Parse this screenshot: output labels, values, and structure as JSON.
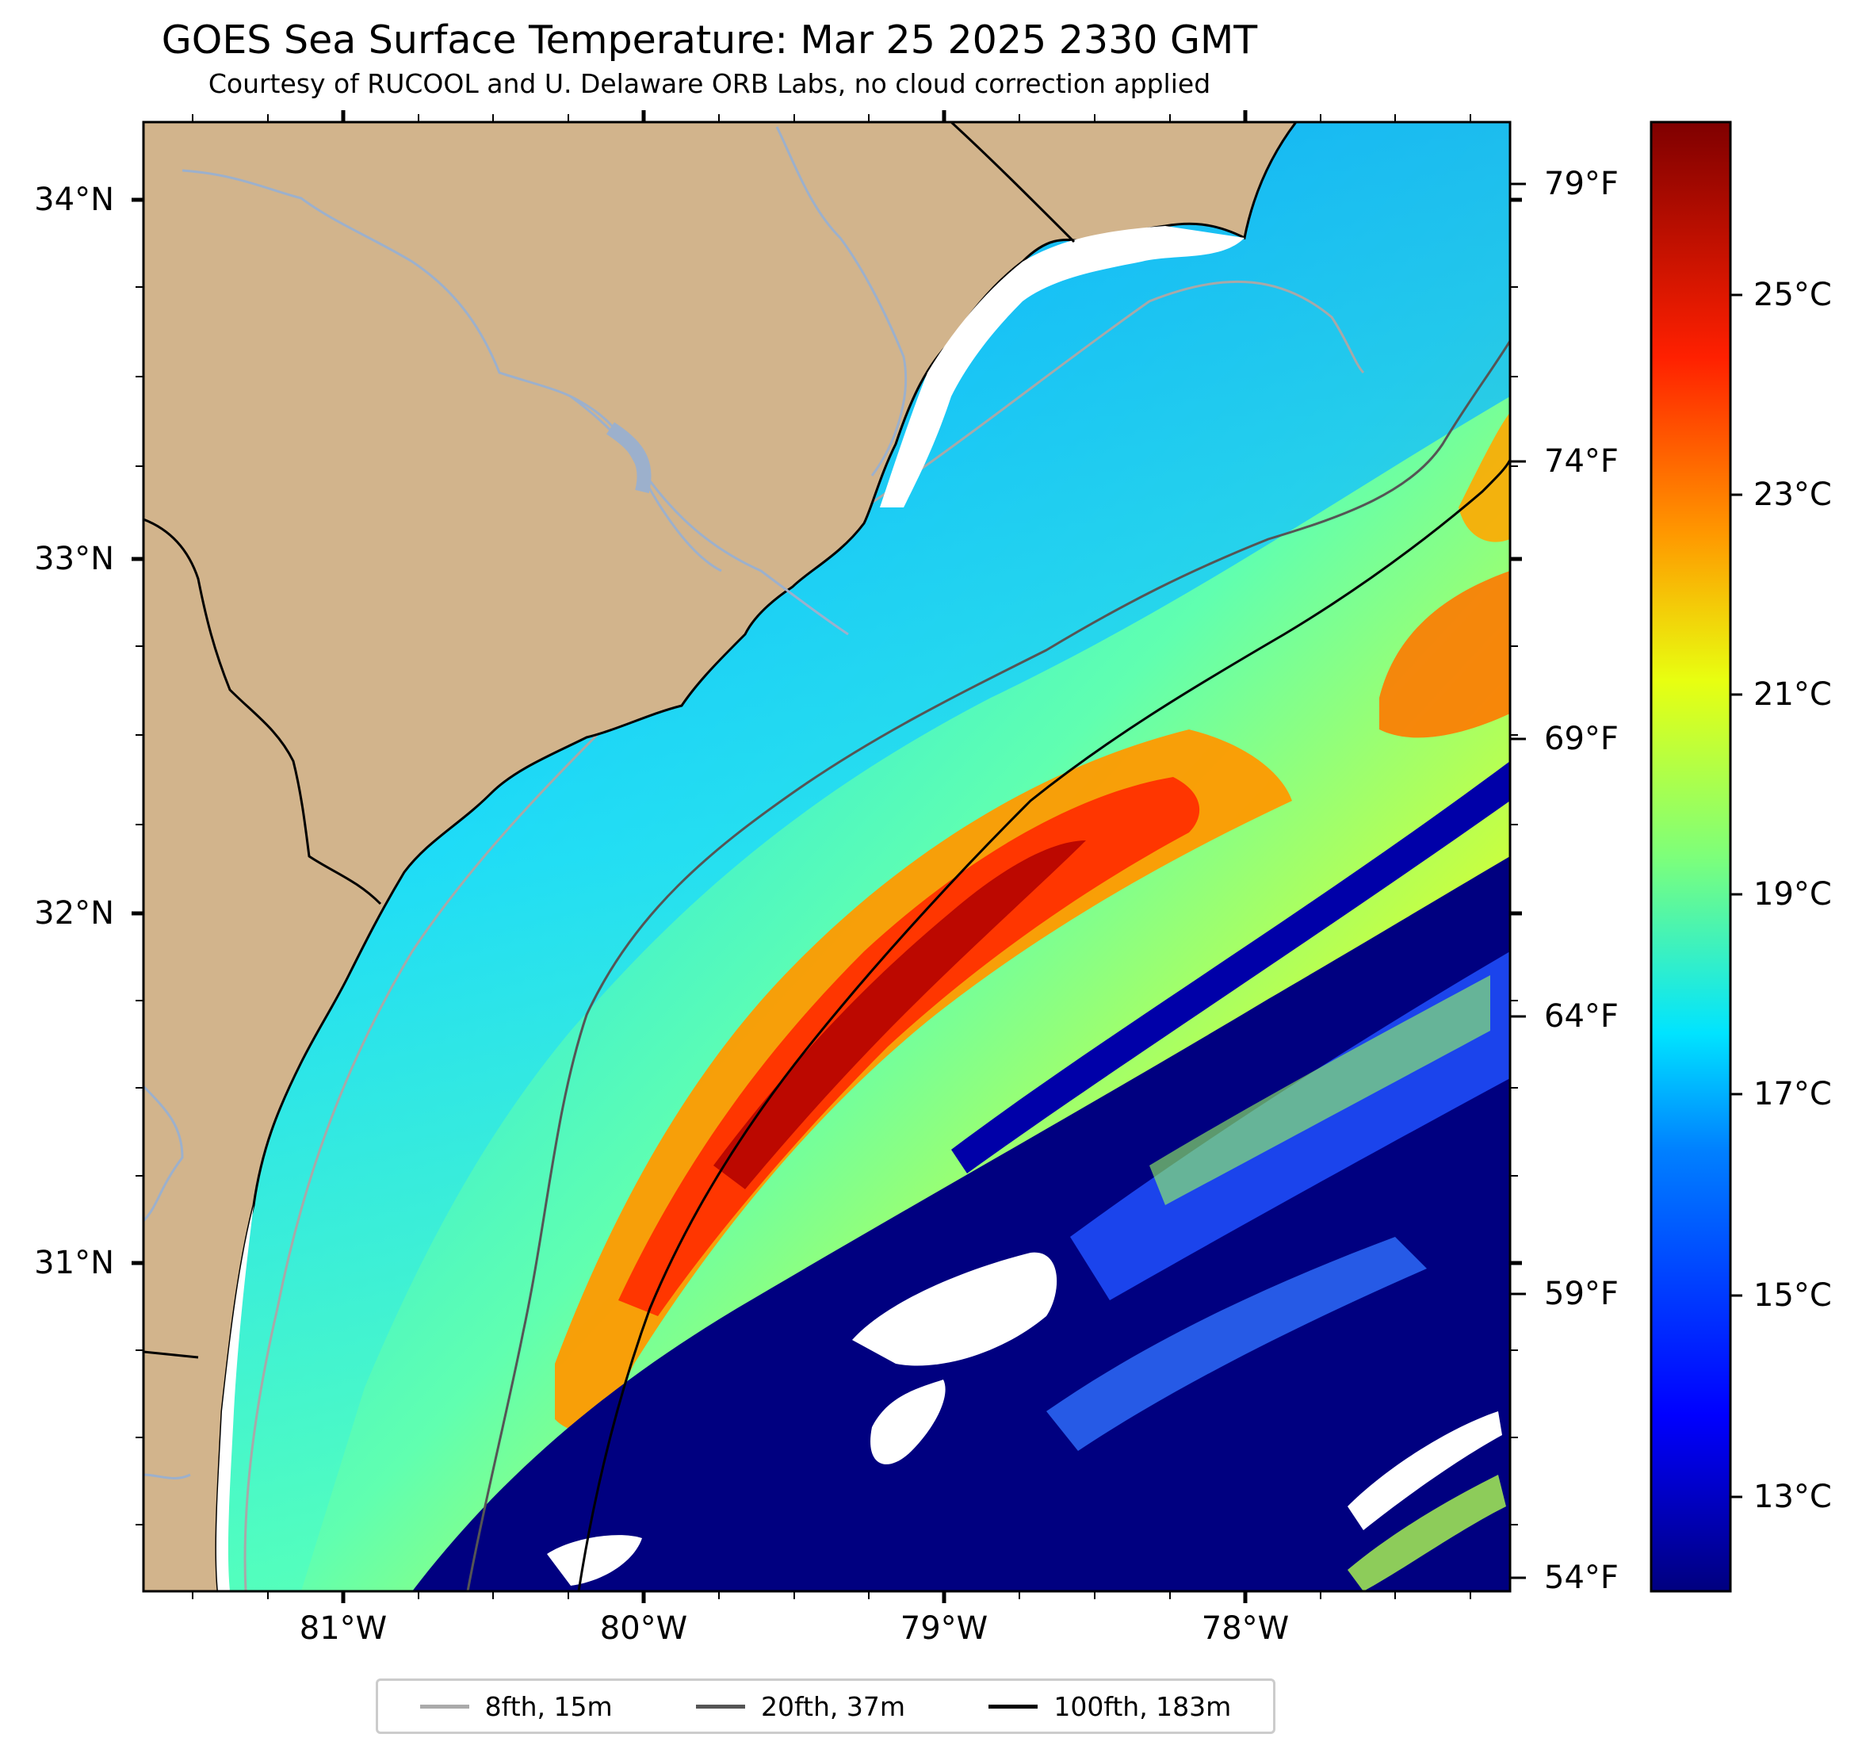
{
  "title": "GOES Sea Surface Temperature: Mar 25 2025 2330 GMT",
  "subtitle": "Courtesy of RUCOOL and U. Delaware ORB Labs, no cloud correction applied",
  "lat_labels": [
    "34°N",
    "33°N",
    "32°N",
    "31°N"
  ],
  "lon_labels": [
    "81°W",
    "80°W",
    "79°W",
    "78°W"
  ],
  "temp_f_labels": [
    "79°F",
    "74°F",
    "69°F",
    "64°F",
    "59°F",
    "54°F"
  ],
  "colorbar": {
    "labels": [
      "25°C",
      "23°C",
      "21°C",
      "19°C",
      "17°C",
      "15°C",
      "13°C"
    ],
    "colors": [
      "#7f0000",
      "#ff0000",
      "#ff8000",
      "#ffff00",
      "#80ff80",
      "#00ffff",
      "#0080ff",
      "#0000ff",
      "#00008f"
    ]
  },
  "legend": [
    {
      "label": "8fth, 15m",
      "color": "#aaaaaa"
    },
    {
      "label": "20fth, 37m",
      "color": "#555555"
    },
    {
      "label": "100fth, 183m",
      "color": "#000000"
    }
  ],
  "colors": {
    "land": "#d2b48c",
    "river": "#9cb0cc",
    "deep_cold": "#000080",
    "cloud": "#ffffff"
  }
}
